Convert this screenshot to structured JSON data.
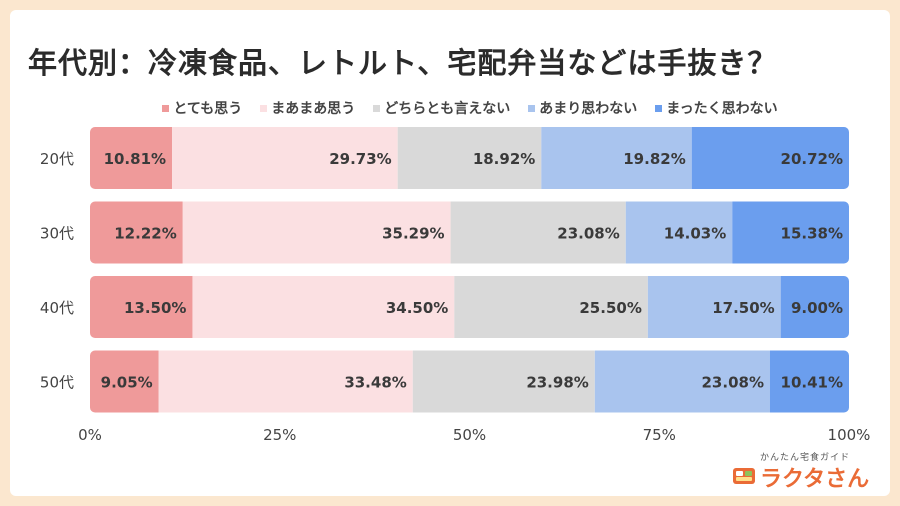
{
  "title": "年代別：冷凍食品、レトルト、宅配弁当などは手抜き？",
  "chart_data": {
    "type": "bar",
    "orientation": "horizontal",
    "stacked": true,
    "categories": [
      "20代",
      "30代",
      "40代",
      "50代"
    ],
    "series": [
      {
        "name": "とても思う",
        "color": "#ef9a9a",
        "values": [
          10.81,
          12.22,
          13.5,
          9.05
        ]
      },
      {
        "name": "まあまあ思う",
        "color": "#fbe0e2",
        "values": [
          29.73,
          35.29,
          34.5,
          33.48
        ]
      },
      {
        "name": "どちらとも言えない",
        "color": "#d9d9d9",
        "values": [
          18.92,
          23.08,
          25.5,
          23.98
        ]
      },
      {
        "name": "あまり思わない",
        "color": "#a9c4ee",
        "values": [
          19.82,
          14.03,
          17.5,
          23.08
        ]
      },
      {
        "name": "まったく思わない",
        "color": "#6b9eee",
        "values": [
          20.72,
          15.38,
          9.0,
          10.41
        ]
      }
    ],
    "value_labels": [
      [
        "10.81%",
        "29.73%",
        "18.92%",
        "19.82%",
        "20.72%"
      ],
      [
        "12.22%",
        "35.29%",
        "23.08%",
        "14.03%",
        "15.38%"
      ],
      [
        "13.50%",
        "34.50%",
        "25.50%",
        "17.50%",
        "9.00%"
      ],
      [
        "9.05%",
        "33.48%",
        "23.98%",
        "23.08%",
        "10.41%"
      ]
    ],
    "xticks": [
      "0%",
      "25%",
      "50%",
      "75%",
      "100%"
    ],
    "xlim": [
      0,
      100
    ],
    "legend_position": "top"
  },
  "logo": {
    "tagline": "かんたん宅食ガイド",
    "name": "ラクタさん",
    "color": "#ea6b36"
  }
}
